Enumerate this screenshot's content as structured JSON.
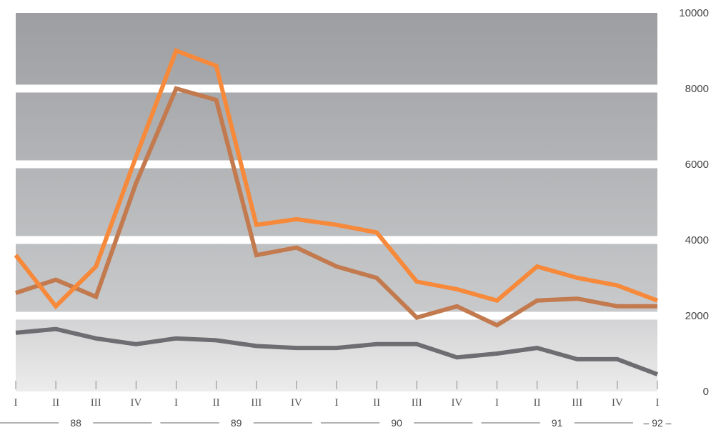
{
  "chart_data": {
    "type": "line",
    "title": "",
    "xlabel": "",
    "ylabel": "",
    "ylim": [
      0,
      10000
    ],
    "y_ticks": [
      "10000",
      "8000",
      "6000",
      "4000",
      "2000",
      "0"
    ],
    "y_tick_values": [
      10000,
      8000,
      6000,
      4000,
      2000,
      0
    ],
    "categories": [
      "I",
      "II",
      "III",
      "IV",
      "I",
      "II",
      "III",
      "IV",
      "I",
      "II",
      "III",
      "IV",
      "I",
      "II",
      "III",
      "IV",
      "I"
    ],
    "year_groups": [
      {
        "label": "88",
        "start": 0,
        "end": 3
      },
      {
        "label": "89",
        "start": 4,
        "end": 7
      },
      {
        "label": "90",
        "start": 8,
        "end": 11
      },
      {
        "label": "91",
        "start": 12,
        "end": 15
      },
      {
        "label": "92",
        "start": 16,
        "end": 16
      }
    ],
    "grid": true,
    "legend": "none",
    "series": [
      {
        "color": "#f7893a",
        "values": [
          3600,
          2250,
          3300,
          6200,
          9000,
          8600,
          4400,
          4550,
          4400,
          4200,
          2900,
          2700,
          2400,
          3300,
          3000,
          2800,
          2400
        ]
      },
      {
        "color": "#c27a4e",
        "values": [
          2600,
          2950,
          2500,
          5500,
          8000,
          7700,
          3600,
          3800,
          3300,
          3000,
          1950,
          2250,
          1750,
          2400,
          2450,
          2250,
          2250
        ]
      },
      {
        "color": "#6e6e72",
        "values": [
          1550,
          1650,
          1400,
          1250,
          1400,
          1350,
          1200,
          1150,
          1150,
          1250,
          1250,
          900,
          1000,
          1150,
          850,
          850,
          450
        ]
      }
    ]
  }
}
